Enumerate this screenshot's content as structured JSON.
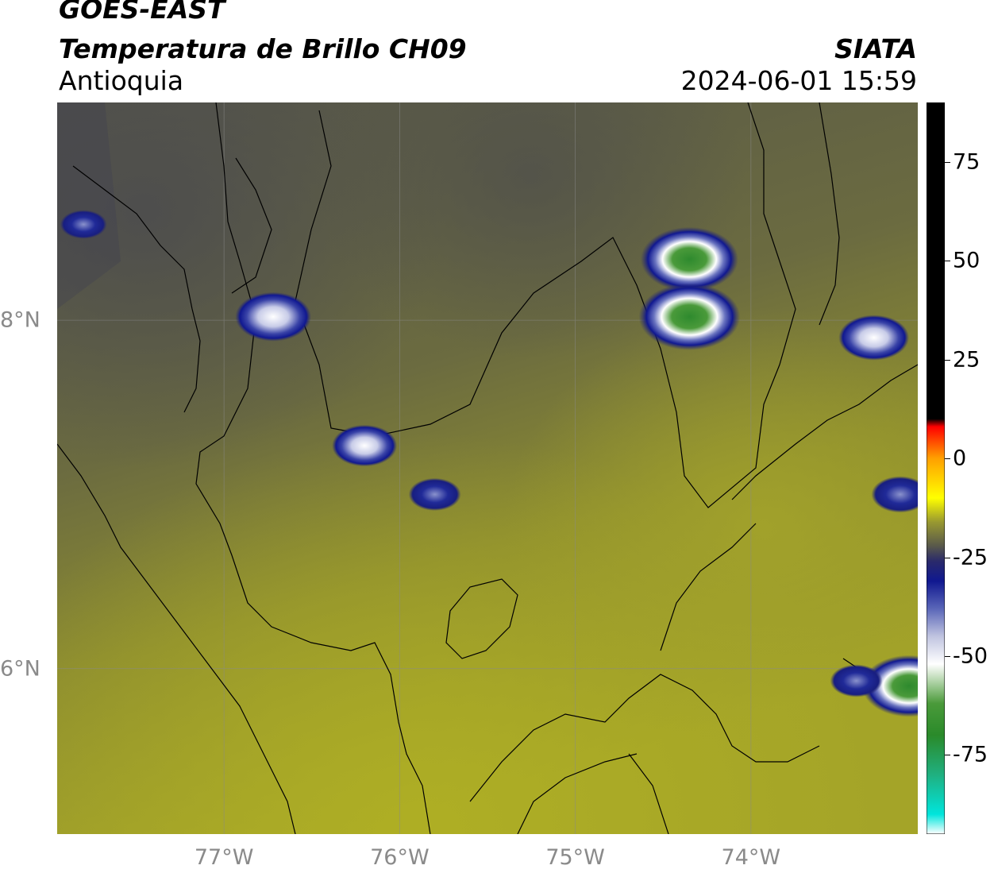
{
  "header": {
    "satellite": "GOES-EAST",
    "product": "Temperatura de Brillo CH09",
    "region": "Antioquia",
    "organization": "SIATA",
    "datetime": "2024-06-01 15:59"
  },
  "map": {
    "lon_range": [
      -77.95,
      -73.05
    ],
    "lat_range": [
      5.05,
      9.25
    ],
    "x_ticks": [
      {
        "lon": -77,
        "label": "77°W"
      },
      {
        "lon": -76,
        "label": "76°W"
      },
      {
        "lon": -75,
        "label": "75°W"
      },
      {
        "lon": -74,
        "label": "74°W"
      }
    ],
    "y_ticks": [
      {
        "lat": 8,
        "label": "8°N"
      },
      {
        "lat": 6,
        "label": "6°N"
      }
    ],
    "cold_cloud_cells": [
      {
        "lon": -74.35,
        "lat": 8.35,
        "temp": -60
      },
      {
        "lon": -74.35,
        "lat": 8.02,
        "temp": -62
      },
      {
        "lon": -76.72,
        "lat": 8.02,
        "temp": -48
      },
      {
        "lon": -76.2,
        "lat": 7.28,
        "temp": -42
      },
      {
        "lon": -75.8,
        "lat": 7.0,
        "temp": -35
      },
      {
        "lon": -73.3,
        "lat": 7.9,
        "temp": -45
      },
      {
        "lon": -73.15,
        "lat": 7.0,
        "temp": -38
      },
      {
        "lon": -73.1,
        "lat": 5.9,
        "temp": -58
      },
      {
        "lon": -73.4,
        "lat": 5.93,
        "temp": -35
      },
      {
        "lon": -77.8,
        "lat": 8.55,
        "temp": -32
      }
    ]
  },
  "colorbar": {
    "range": [
      -95,
      90
    ],
    "ticks": [
      {
        "value": 75,
        "label": "75"
      },
      {
        "value": 50,
        "label": "50"
      },
      {
        "value": 25,
        "label": "25"
      },
      {
        "value": 0,
        "label": "0"
      },
      {
        "value": -25,
        "label": "-25"
      },
      {
        "value": -50,
        "label": "-50"
      },
      {
        "value": -75,
        "label": "-75"
      }
    ],
    "stops": [
      {
        "value": -95,
        "color": "#ffffff"
      },
      {
        "value": -90,
        "color": "#00e5dc"
      },
      {
        "value": -80,
        "color": "#20b080"
      },
      {
        "value": -70,
        "color": "#2a8a2a"
      },
      {
        "value": -62,
        "color": "#4a9a3a"
      },
      {
        "value": -56,
        "color": "#b8d8b0"
      },
      {
        "value": -52,
        "color": "#ffffff"
      },
      {
        "value": -45,
        "color": "#c0c4e0"
      },
      {
        "value": -38,
        "color": "#5a66b8"
      },
      {
        "value": -31,
        "color": "#101890"
      },
      {
        "value": -26,
        "color": "#2a2a6a"
      },
      {
        "value": -22,
        "color": "#5a5a4a"
      },
      {
        "value": -16,
        "color": "#9a9a30"
      },
      {
        "value": -10,
        "color": "#ffff00"
      },
      {
        "value": 0,
        "color": "#ffa000"
      },
      {
        "value": 8,
        "color": "#ff0000"
      },
      {
        "value": 10,
        "color": "#000000"
      },
      {
        "value": 90,
        "color": "#000000"
      }
    ]
  }
}
